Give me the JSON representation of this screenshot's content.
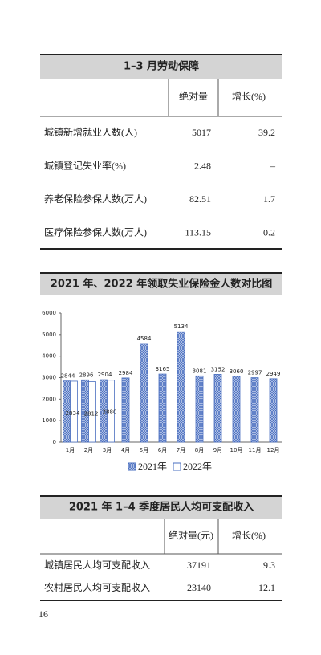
{
  "table1": {
    "title": "1–3 月劳动保障",
    "headers": [
      "绝对量",
      "增长(%)"
    ],
    "rows": [
      [
        "城镇新增就业人数(人)",
        5017,
        39.2
      ],
      [
        "城镇登记失业率(%)",
        2.48,
        "–"
      ],
      [
        "养老保险参保人数(万人)",
        82.51,
        1.7
      ],
      [
        "医疗保险参保人数(万人)",
        113.15,
        0.2
      ]
    ]
  },
  "chart_data": {
    "type": "bar",
    "title": "2021 年、2022 年领取失业保险金人数对比图",
    "categories": [
      "1月",
      "2月",
      "3月",
      "4月",
      "5月",
      "6月",
      "7月",
      "8月",
      "9月",
      "10月",
      "11月",
      "12月"
    ],
    "series": [
      {
        "name": "2021年",
        "color": "#4a6fc0",
        "values": [
          2844,
          2896,
          2904,
          2984,
          4584,
          3165,
          5134,
          3081,
          3152,
          3060,
          2997,
          2949
        ]
      },
      {
        "name": "2022年",
        "color": "#4a6fc0",
        "values": [
          2834,
          2812,
          2880,
          null,
          null,
          null,
          null,
          null,
          null,
          null,
          null,
          null
        ]
      }
    ],
    "ylim": [
      0,
      6000
    ],
    "yticks": [
      0,
      1000,
      2000,
      3000,
      4000,
      5000,
      6000
    ]
  },
  "table2": {
    "title": "2021 年 1–4 季度居民人均可支配收入",
    "headers": [
      "绝对量(元)",
      "增长(%)"
    ],
    "rows": [
      [
        "城镇居民人均可支配收入",
        37191,
        9.3
      ],
      [
        "农村居民人均可支配收入",
        23140,
        12.1
      ]
    ]
  },
  "page_number": "16"
}
